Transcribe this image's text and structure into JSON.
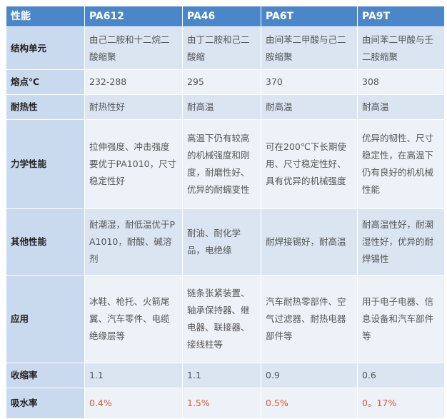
{
  "table": {
    "header": [
      "性能",
      "PA612",
      "PA46",
      "PA6T",
      "PA9T"
    ],
    "rows": [
      [
        "结构单元",
        "由己二胺和十二烷二酸缩聚",
        "由丁二胺和己二酸缩",
        "由间苯二甲酸与己二胺缩聚",
        "由间苯二甲酸与壬二胺缩聚"
      ],
      [
        "熔点℃",
        "232-288",
        "295",
        "370",
        "308"
      ],
      [
        "耐热性",
        "耐热性好",
        "耐高温",
        "耐高温",
        "耐高温"
      ],
      [
        "力学性能",
        "拉伸强度、冲击强度要优于PA1010，尺寸稳定性好",
        "高温下仍有较高的机械强度和刚度，耐磨性好、优异的耐蠕变性",
        "可在200℃下长期使用、尺寸稳定性好、具有优异的机械强度",
        "优异的韧性、尺寸稳定性，在高温下仍有良好的机机械性能"
      ],
      [
        "其他性能",
        "耐潮湿，耐低温优于PA1010，耐酸、碱溶剂",
        "耐油、耐化学品，电绝缘",
        "耐焊接锡好，耐高温",
        "耐高温性好，耐潮湿性好，优异的耐焊锡性"
      ],
      [
        "应用",
        "冰鞋、枪托、火箭尾翼、汽车零件、电缆绝缘层等",
        "链条张紧装置、轴承保持器、继电器、联接器、接线柱等",
        "汽车耐热零部件、空气过滤器、耐热电器部件等",
        "用于电子电器、信息设备和汽车部件等"
      ],
      [
        "收缩率",
        "1.1",
        "1.1",
        "0.9",
        "0.6"
      ],
      [
        "吸水率",
        "0.4%",
        "1.5%",
        "0.5%",
        "0。17%"
      ]
    ]
  }
}
